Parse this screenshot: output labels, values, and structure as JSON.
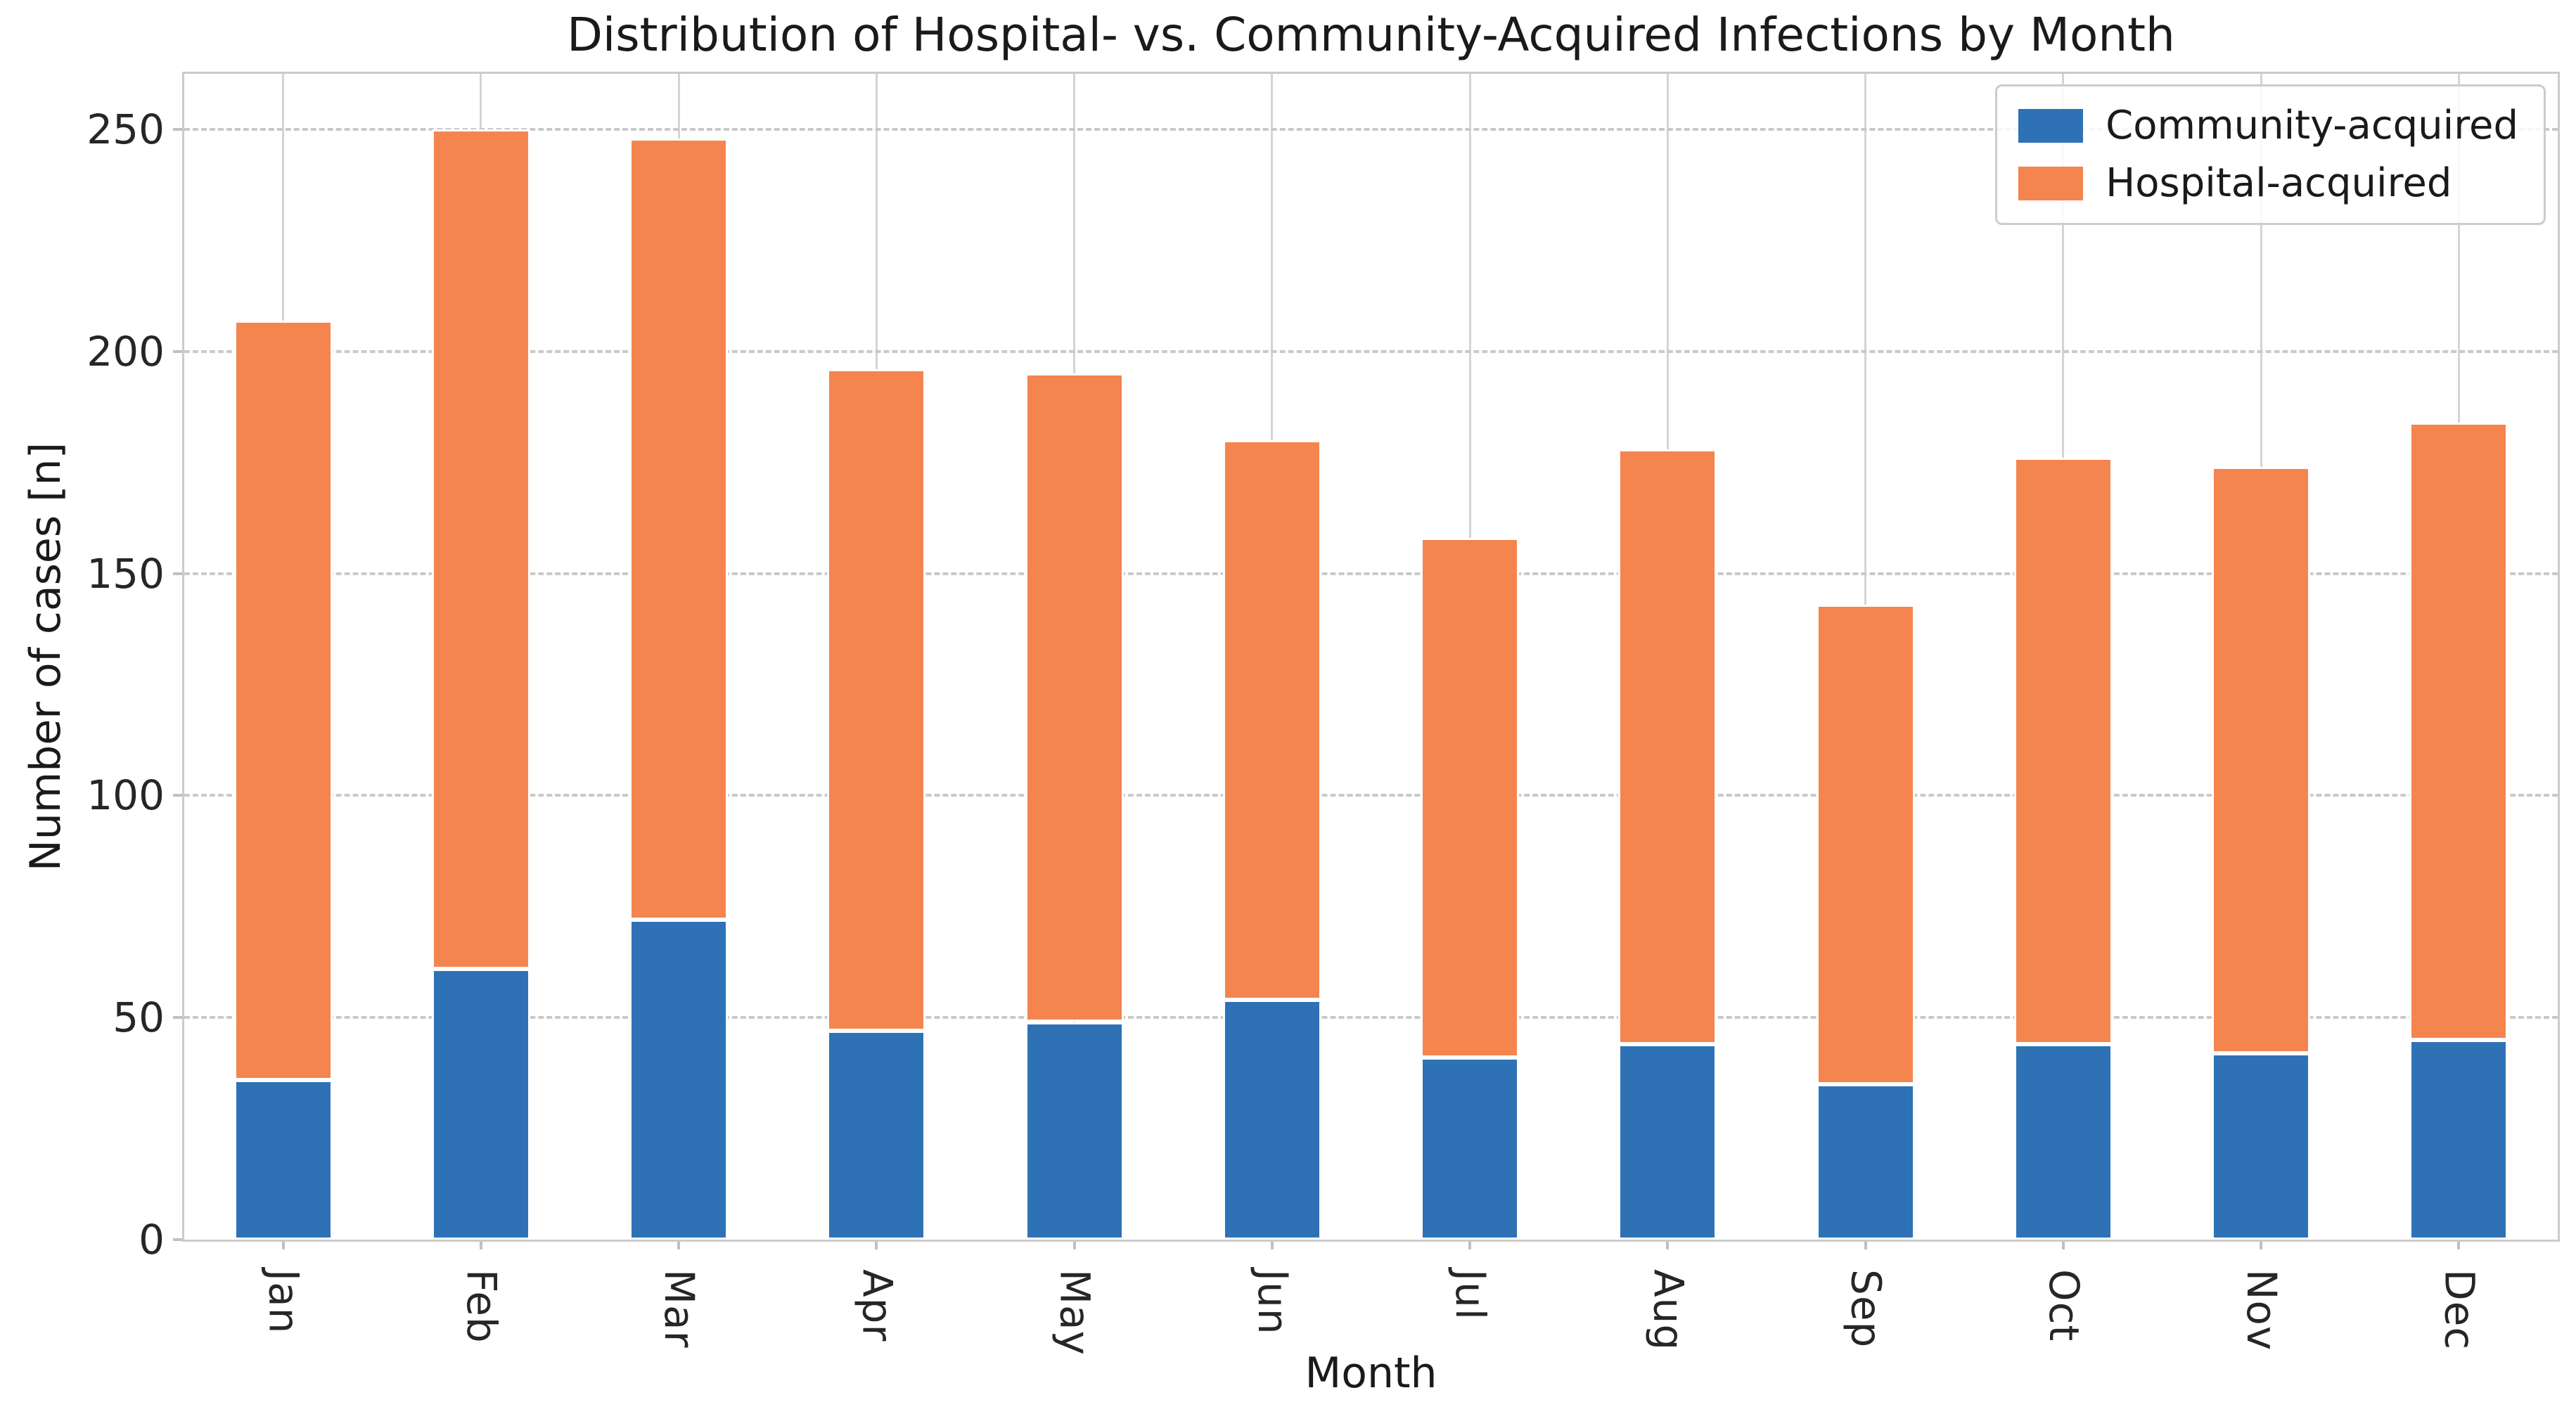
{
  "title": "Distribution of Hospital- vs. Community-Acquired Infections by Month",
  "chart_data": {
    "type": "bar",
    "stacked": true,
    "title": "Distribution of Hospital- vs. Community-Acquired Infections by Month",
    "xlabel": "Month",
    "ylabel": "Number of cases [n]",
    "categories": [
      "Jan",
      "Feb",
      "Mar",
      "Apr",
      "May",
      "Jun",
      "Jul",
      "Aug",
      "Sep",
      "Oct",
      "Nov",
      "Dec"
    ],
    "series": [
      {
        "name": "Community-acquired",
        "color": "#2e72b5",
        "values": [
          36,
          61,
          72,
          47,
          49,
          54,
          41,
          44,
          35,
          44,
          42,
          45
        ]
      },
      {
        "name": "Hospital-acquired",
        "color": "#f4854e",
        "values": [
          171,
          189,
          176,
          149,
          146,
          126,
          117,
          134,
          108,
          132,
          132,
          139
        ]
      }
    ],
    "totals": [
      207,
      250,
      248,
      196,
      195,
      180,
      158,
      178,
      143,
      176,
      174,
      184
    ],
    "ylim": [
      0,
      262.5
    ],
    "yticks": [
      0,
      50,
      100,
      150,
      200,
      250
    ],
    "legend_position": "upper right",
    "grid": {
      "horizontal": "dashed",
      "vertical": "solid"
    },
    "axis_color": "#cbcbcb"
  }
}
